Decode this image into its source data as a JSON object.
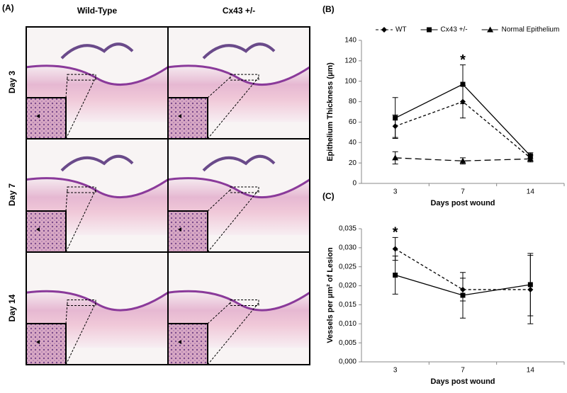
{
  "panel_a": {
    "label": "(A)",
    "columns": [
      "Wild-Type",
      "Cx43 +/-"
    ],
    "rows": [
      "Day 3",
      "Day 7",
      "Day 14"
    ]
  },
  "chart_data": [
    {
      "type": "line",
      "label": "(B)",
      "y_label": "Epithelium Thickness (µm)",
      "x_label": "Days post wound",
      "categories": [
        "3",
        "7",
        "14"
      ],
      "ylim": [
        0,
        140
      ],
      "yticks": [
        0,
        20,
        40,
        60,
        80,
        100,
        120,
        140
      ],
      "legend": "top",
      "series": [
        {
          "name": "WT",
          "color": "#000000",
          "marker": "diamond",
          "line_style": "dashed",
          "values": [
            56,
            80,
            25
          ],
          "errors": [
            11,
            16,
            3
          ]
        },
        {
          "name": "Cx43 +/-",
          "color": "#000000",
          "marker": "square",
          "line_style": "solid",
          "values": [
            64,
            97,
            27
          ],
          "errors": [
            20,
            19,
            3
          ]
        },
        {
          "name": "Normal Epithelium",
          "color": "#000000",
          "marker": "triangle",
          "line_style": "long-dash",
          "values": [
            25,
            22,
            24
          ],
          "errors": [
            6,
            3,
            3
          ]
        }
      ],
      "annotations": [
        {
          "text": "*",
          "x": "7"
        }
      ]
    },
    {
      "type": "line",
      "label": "(C)",
      "y_label": "Vessels per µm² of Lesion",
      "x_label": "Days post wound",
      "categories": [
        "3",
        "7",
        "14"
      ],
      "ylim": [
        0,
        0.035
      ],
      "yticks": [
        {
          "value": 0,
          "label": "0,000"
        },
        {
          "value": 0.005,
          "label": "0,005"
        },
        {
          "value": 0.01,
          "label": "0,010"
        },
        {
          "value": 0.015,
          "label": "0,015"
        },
        {
          "value": 0.02,
          "label": "0,020"
        },
        {
          "value": 0.025,
          "label": "0,025"
        },
        {
          "value": 0.03,
          "label": "0,030"
        },
        {
          "value": 0.035,
          "label": "0,035"
        }
      ],
      "series": [
        {
          "color": "#000000",
          "marker": "diamond",
          "line_style": "dashed",
          "values": [
            0.0297,
            0.019,
            0.019
          ],
          "errors": [
            0.003,
            0.003,
            0.009
          ]
        },
        {
          "color": "#000000",
          "marker": "square",
          "line_style": "solid",
          "values": [
            0.0228,
            0.0175,
            0.0203
          ],
          "errors": [
            0.005,
            0.006,
            0.0082
          ]
        }
      ],
      "annotations": [
        {
          "text": "*",
          "x": "3"
        }
      ]
    }
  ]
}
